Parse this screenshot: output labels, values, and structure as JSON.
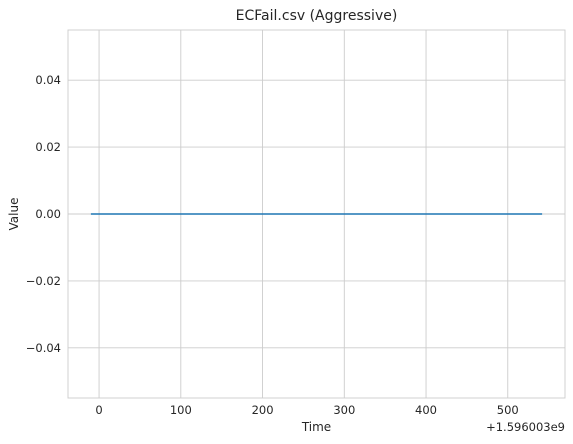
{
  "chart_data": {
    "type": "line",
    "title": "ECFail.csv (Aggressive)",
    "xlabel": "Time",
    "ylabel": "Value",
    "x_offset_text": "+1.596003e9",
    "xlim": [
      -38,
      570
    ],
    "ylim": [
      -0.055,
      0.055
    ],
    "x_ticks": [
      0,
      100,
      200,
      300,
      400,
      500
    ],
    "x_tick_labels": [
      "0",
      "100",
      "200",
      "300",
      "400",
      "500"
    ],
    "y_ticks": [
      -0.04,
      -0.02,
      0.0,
      0.02,
      0.04
    ],
    "y_tick_labels": [
      "−0.04",
      "−0.02",
      "0.00",
      "0.02",
      "0.04"
    ],
    "grid": true,
    "series": [
      {
        "color": "#1f77b4",
        "x": [
          -10,
          542
        ],
        "values": [
          0,
          0
        ]
      }
    ]
  }
}
